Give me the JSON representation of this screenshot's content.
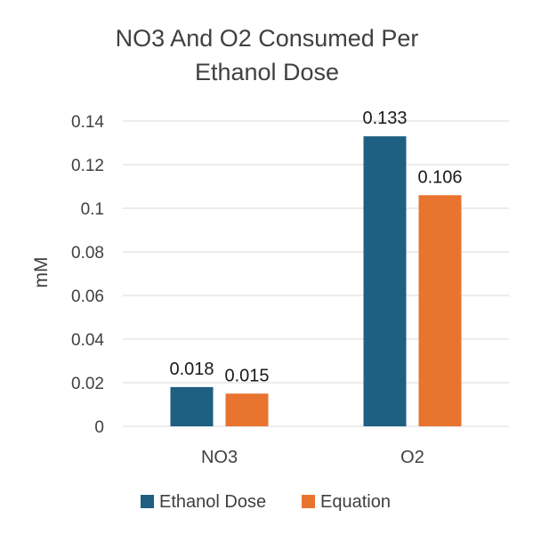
{
  "chart_data": {
    "type": "bar",
    "title": "NO3 And O2 Consumed Per Ethanol Dose",
    "title_lines": [
      "NO3 And O2 Consumed Per",
      "Ethanol Dose"
    ],
    "xlabel": "",
    "ylabel": "mM",
    "categories": [
      "NO3",
      "O2"
    ],
    "series": [
      {
        "name": "Ethanol Dose",
        "values": [
          0.018,
          0.133
        ],
        "labels": [
          "0.018",
          "0.133"
        ],
        "color": "#1f5f82"
      },
      {
        "name": "Equation",
        "values": [
          0.015,
          0.106
        ],
        "labels": [
          "0.015",
          "0.106"
        ],
        "color": "#e8742f"
      }
    ],
    "ylim": [
      0,
      0.14
    ],
    "yticks": [
      {
        "value": 0,
        "label": "0"
      },
      {
        "value": 0.02,
        "label": "0.02"
      },
      {
        "value": 0.04,
        "label": "0.04"
      },
      {
        "value": 0.06,
        "label": "0.06"
      },
      {
        "value": 0.08,
        "label": "0.08"
      },
      {
        "value": 0.1,
        "label": "0.1"
      },
      {
        "value": 0.12,
        "label": "0.12"
      },
      {
        "value": 0.14,
        "label": "0.14"
      }
    ],
    "grid": true,
    "legend": "bottom",
    "colors": {
      "grid": "#d9d9d9",
      "text": "#404040"
    }
  }
}
